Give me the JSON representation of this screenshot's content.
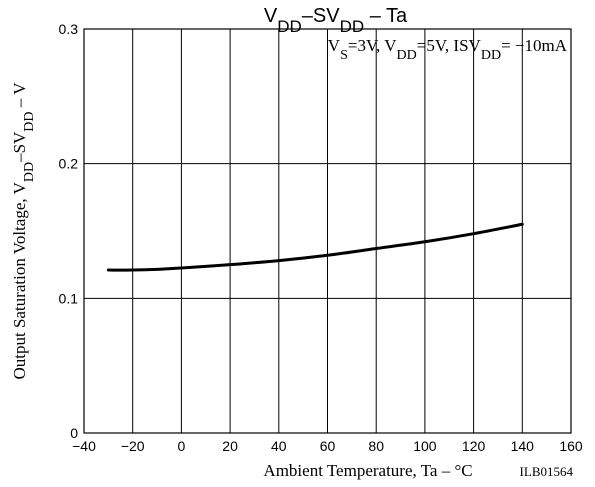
{
  "chart_data": {
    "type": "line",
    "title": {
      "parts": [
        {
          "text": "V",
          "sub": false
        },
        {
          "text": "DD",
          "sub": true
        },
        {
          "text": "–SV",
          "sub": false
        },
        {
          "text": "DD",
          "sub": true
        },
        {
          "text": "  –  Ta",
          "sub": false
        }
      ]
    },
    "condition": {
      "parts": [
        {
          "text": "V",
          "sub": false
        },
        {
          "text": "S",
          "sub": true
        },
        {
          "text": "=3V, V",
          "sub": false
        },
        {
          "text": "DD",
          "sub": true
        },
        {
          "text": "=5V, ISV",
          "sub": false
        },
        {
          "text": "DD",
          "sub": true
        },
        {
          "text": "= −10mA",
          "sub": false
        }
      ]
    },
    "xlabel": "Ambient Temperature, Ta  –  °C",
    "ylabel": {
      "parts": [
        {
          "text": "Output Saturation Voltage, V",
          "sub": false
        },
        {
          "text": "DD",
          "sub": true
        },
        {
          "text": "–SV",
          "sub": false
        },
        {
          "text": "DD",
          "sub": true
        },
        {
          "text": "  –  V",
          "sub": false
        }
      ]
    },
    "code": "ILB01564",
    "xlim": [
      -40,
      160
    ],
    "ylim": [
      0,
      0.3
    ],
    "xticks": [
      -40,
      -20,
      0,
      20,
      40,
      60,
      80,
      100,
      120,
      140,
      160
    ],
    "xtick_labels": [
      "−40",
      "−20",
      "0",
      "20",
      "40",
      "60",
      "80",
      "100",
      "120",
      "140",
      "160"
    ],
    "yticks": [
      0,
      0.1,
      0.2,
      0.3
    ],
    "ytick_labels": [
      "0",
      "0.1",
      "0.2",
      "0.3"
    ],
    "grid": true,
    "line_color": "#000000",
    "series": [
      {
        "x": [
          -30,
          -20,
          -10,
          0,
          20,
          40,
          60,
          80,
          100,
          120,
          140
        ],
        "y": [
          0.121,
          0.121,
          0.1215,
          0.1225,
          0.125,
          0.128,
          0.132,
          0.137,
          0.142,
          0.148,
          0.155
        ]
      }
    ]
  }
}
